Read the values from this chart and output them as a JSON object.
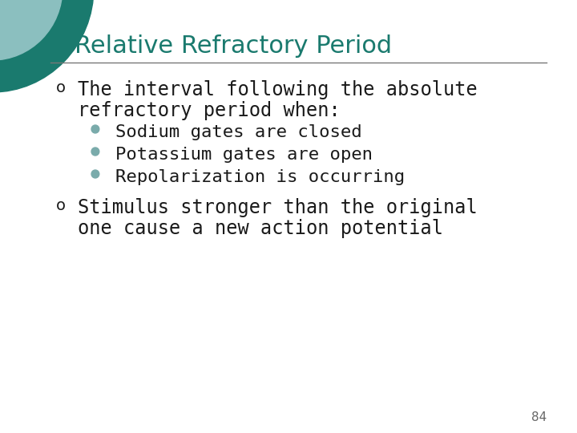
{
  "title": "Relative Refractory Period",
  "title_color": "#1A7A6E",
  "bg_color": "#FFFFFF",
  "line_color": "#777777",
  "body_color": "#1a1a1a",
  "bullet_marker": "o",
  "sub_bullet_color": "#7AABAB",
  "bullet1_text1": "The interval following the absolute",
  "bullet1_text2": "refractory period when:",
  "sub1": "Sodium gates are closed",
  "sub2": "Potassium gates are open",
  "sub3": "Repolarization is occurring",
  "bullet2_text1": "Stimulus stronger than the original",
  "bullet2_text2": "one cause a new action potential",
  "page_number": "84",
  "circle_color1": "#1A7A6E",
  "circle_color2": "#8BBFBF",
  "title_fontsize": 22,
  "body_fontsize": 17,
  "sub_fontsize": 16
}
